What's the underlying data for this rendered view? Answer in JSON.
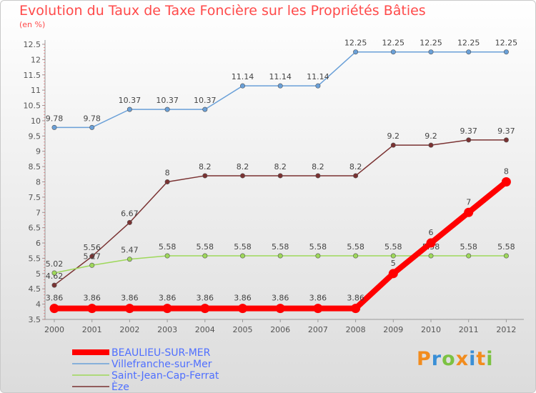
{
  "title": "Evolution du Taux de Taxe Foncière sur les Propriétés Bâties",
  "subtitle": "(en %)",
  "logo": "Proxiti",
  "chart_data": {
    "type": "line",
    "x": [
      "2000",
      "2001",
      "2002",
      "2003",
      "2004",
      "2005",
      "2006",
      "2007",
      "2008",
      "2009",
      "2010",
      "2011",
      "2012"
    ],
    "ylim": [
      3.5,
      12.5
    ],
    "yticks": [
      "3.5",
      "4",
      "4.5",
      "5",
      "5.5",
      "6",
      "6.5",
      "7",
      "7.5",
      "8",
      "8.5",
      "9",
      "9.5",
      "10",
      "10.5",
      "11",
      "11.5",
      "12",
      "12.5"
    ],
    "grid": false,
    "legend": "bottom-left",
    "series": [
      {
        "name": "Villefranche-sur-Mer",
        "color": "#6aa0d8",
        "values": [
          9.78,
          9.78,
          10.37,
          10.37,
          10.37,
          11.14,
          11.14,
          11.14,
          12.25,
          12.25,
          12.25,
          12.25,
          12.25
        ],
        "labels": [
          "9.78",
          "9.78",
          "10.37",
          "10.37",
          "10.37",
          "11.14",
          "11.14",
          "11.14",
          "12.25",
          "12.25",
          "12.25",
          "12.25",
          "12.25"
        ]
      },
      {
        "name": "Èze",
        "color": "#7a3232",
        "values": [
          4.62,
          5.56,
          6.67,
          8,
          8.2,
          8.2,
          8.2,
          8.2,
          8.2,
          9.2,
          9.2,
          9.37,
          9.37
        ],
        "labels": [
          "4.62",
          "5.56",
          "6.67",
          "8",
          "8.2",
          "8.2",
          "8.2",
          "8.2",
          "8.2",
          "9.2",
          "9.2",
          "9.37",
          "9.37"
        ]
      },
      {
        "name": "Saint-Jean-Cap-Ferrat",
        "color": "#9ed85a",
        "values": [
          5.02,
          5.27,
          5.47,
          5.58,
          5.58,
          5.58,
          5.58,
          5.58,
          5.58,
          5.58,
          5.58,
          5.58,
          5.58
        ],
        "labels": [
          "5.02",
          "5.27",
          "5.47",
          "5.58",
          "5.58",
          "5.58",
          "5.58",
          "5.58",
          "5.58",
          "5.58",
          "5.58",
          "5.58",
          "5.58"
        ]
      },
      {
        "name": "BEAULIEU-SUR-MER",
        "color": "#ff0000",
        "values": [
          3.86,
          3.86,
          3.86,
          3.86,
          3.86,
          3.86,
          3.86,
          3.86,
          3.86,
          5,
          6,
          7,
          8
        ],
        "labels": [
          "3.86",
          "3.86",
          "3.86",
          "3.86",
          "3.86",
          "3.86",
          "3.86",
          "3.86",
          "3.86",
          "5",
          "6",
          "7",
          "8"
        ]
      }
    ],
    "legend_order": [
      "BEAULIEU-SUR-MER",
      "Villefranche-sur-Mer",
      "Saint-Jean-Cap-Ferrat",
      "Èze"
    ]
  }
}
